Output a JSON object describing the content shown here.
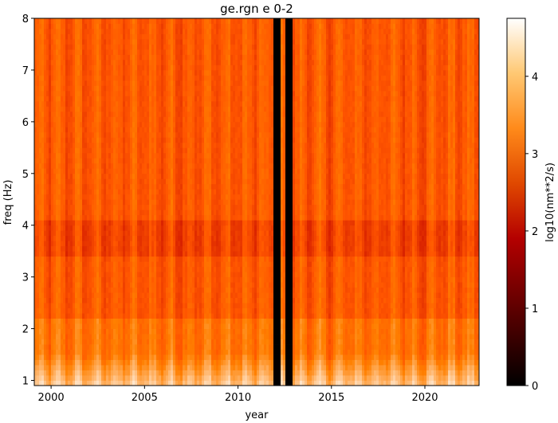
{
  "chart_data": {
    "type": "heatmap",
    "title": "ge.rgn e 0-2",
    "xlabel": "year",
    "ylabel": "freq (Hz)",
    "colorbar_label": "log10(nm**2/s)",
    "colormap": "gist_heat",
    "xlim": [
      1999.1,
      2022.9
    ],
    "ylim": [
      0.9,
      8.0
    ],
    "x_ticks": [
      2000,
      2005,
      2010,
      2015,
      2020
    ],
    "x_tick_labels": [
      "2000",
      "2005",
      "2010",
      "2015",
      "2020"
    ],
    "y_ticks": [
      1,
      2,
      3,
      4,
      5,
      6,
      7,
      8
    ],
    "y_tick_labels": [
      "1",
      "2",
      "3",
      "4",
      "5",
      "6",
      "7",
      "8"
    ],
    "colorbar_range": [
      0,
      4.75
    ],
    "colorbar_ticks": [
      0,
      1,
      2,
      3,
      4
    ],
    "colorbar_tick_labels": [
      "0",
      "1",
      "2",
      "3",
      "4"
    ],
    "typical_level": 3.2,
    "low_freq_level": 4.2,
    "gap_ranges": [
      [
        2011.9,
        2012.25
      ],
      [
        2012.5,
        2012.9
      ]
    ]
  }
}
